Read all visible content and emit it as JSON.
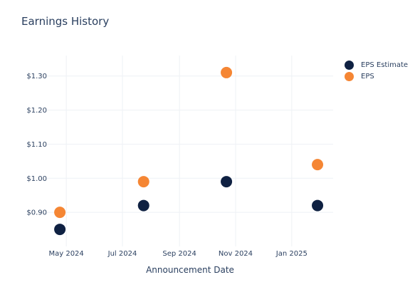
{
  "chart_data": {
    "type": "scatter",
    "title": "Earnings History",
    "xlabel": "Announcement Date",
    "ylabel": "",
    "x_ticks": [
      "May 2024",
      "Jul 2024",
      "Sep 2024",
      "Nov 2024",
      "Jan 2025"
    ],
    "y_ticks": [
      "$0.90",
      "$1.00",
      "$1.10",
      "$1.20",
      "$1.30"
    ],
    "y_tick_values": [
      0.9,
      1.0,
      1.1,
      1.2,
      1.3
    ],
    "x_tick_dates": [
      "2024-05-01",
      "2024-07-01",
      "2024-09-01",
      "2024-11-01",
      "2025-01-01"
    ],
    "xlim": [
      "2024-04-10",
      "2025-02-15"
    ],
    "ylim": [
      0.8,
      1.36
    ],
    "grid": true,
    "legend_position": "top-right",
    "series": [
      {
        "name": "EPS Estimate",
        "color": "#0f2142",
        "points": [
          {
            "x": "2024-04-24",
            "y": 0.85
          },
          {
            "x": "2024-07-24",
            "y": 0.92
          },
          {
            "x": "2024-10-22",
            "y": 0.99
          },
          {
            "x": "2025-01-29",
            "y": 0.92
          }
        ]
      },
      {
        "name": "EPS",
        "color": "#f58634",
        "points": [
          {
            "x": "2024-04-24",
            "y": 0.9
          },
          {
            "x": "2024-07-24",
            "y": 0.99
          },
          {
            "x": "2024-10-22",
            "y": 1.31
          },
          {
            "x": "2025-01-29",
            "y": 1.04
          }
        ]
      }
    ]
  }
}
